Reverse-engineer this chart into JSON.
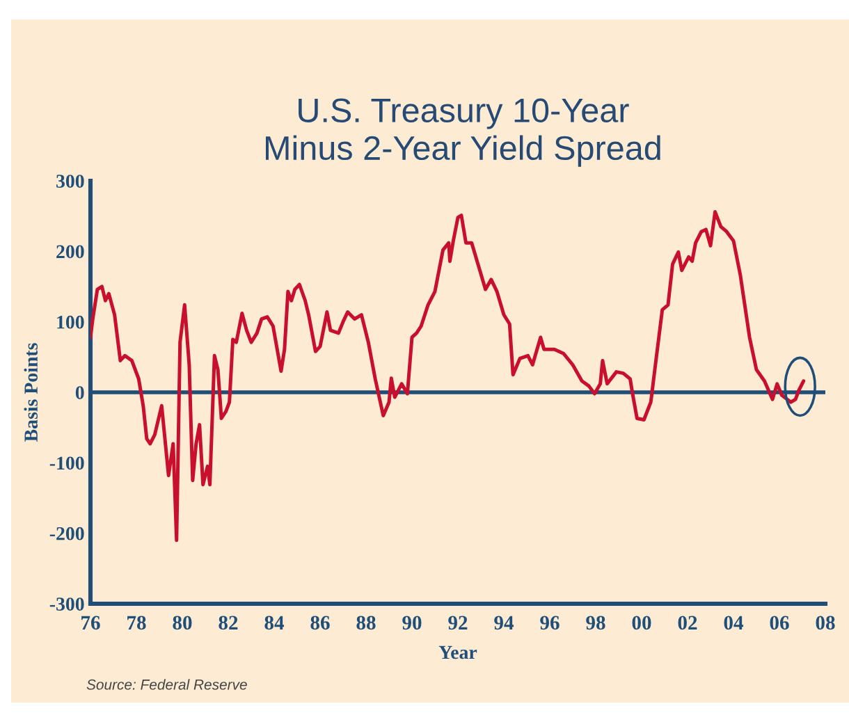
{
  "chart_data": {
    "type": "line",
    "title": "U.S. Treasury 10-Year\nMinus 2-Year Yield Spread",
    "xlabel": "Year",
    "ylabel": "Basis Points",
    "annotations": [
      "Source: Federal Reserve"
    ],
    "x": [
      1976.0,
      1976.1,
      1976.3,
      1976.5,
      1976.65,
      1976.8,
      1977.05,
      1977.3,
      1977.5,
      1977.8,
      1978.1,
      1978.3,
      1978.45,
      1978.6,
      1978.8,
      1979.1,
      1979.4,
      1979.6,
      1979.75,
      1979.9,
      1980.1,
      1980.3,
      1980.45,
      1980.6,
      1980.75,
      1980.9,
      1981.1,
      1981.2,
      1981.4,
      1981.55,
      1981.7,
      1981.9,
      1982.05,
      1982.2,
      1982.35,
      1982.6,
      1982.8,
      1983.0,
      1983.25,
      1983.45,
      1983.7,
      1983.95,
      1984.3,
      1984.45,
      1984.6,
      1984.75,
      1984.9,
      1985.1,
      1985.35,
      1985.5,
      1985.8,
      1986.0,
      1986.3,
      1986.45,
      1986.8,
      1987.0,
      1987.2,
      1987.5,
      1987.8,
      1988.1,
      1988.4,
      1988.75,
      1989.0,
      1989.1,
      1989.25,
      1989.55,
      1989.8,
      1990.0,
      1990.2,
      1990.4,
      1990.7,
      1991.0,
      1991.35,
      1991.6,
      1991.65,
      1991.8,
      1992.0,
      1992.15,
      1992.35,
      1992.6,
      1992.9,
      1993.2,
      1993.45,
      1993.7,
      1994.0,
      1994.25,
      1994.4,
      1994.7,
      1995.05,
      1995.25,
      1995.6,
      1995.75,
      1996.2,
      1996.6,
      1997.0,
      1997.4,
      1997.7,
      1997.95,
      1998.2,
      1998.3,
      1998.5,
      1998.9,
      1999.2,
      1999.5,
      1999.6,
      1999.8,
      2000.1,
      2000.4,
      2000.6,
      2000.9,
      2001.15,
      2001.35,
      2001.6,
      2001.75,
      2002.05,
      2002.2,
      2002.35,
      2002.6,
      2002.8,
      2003.0,
      2003.2,
      2003.45,
      2003.7,
      2004.0,
      2004.3,
      2004.7,
      2005.0,
      2005.35,
      2005.7,
      2005.9,
      2006.1,
      2006.5,
      2006.7,
      2006.85,
      2007.05
    ],
    "series": [
      {
        "color": "#c8102e",
        "values": [
          78,
          104,
          146,
          150,
          130,
          140,
          110,
          45,
          52,
          45,
          19,
          -20,
          -66,
          -73,
          -60,
          -19,
          -118,
          -73,
          -210,
          71,
          124,
          39,
          -125,
          -73,
          -46,
          -131,
          -105,
          -131,
          52,
          32,
          -37,
          -27,
          -14,
          75,
          71,
          112,
          88,
          71,
          84,
          104,
          107,
          94,
          30,
          61,
          143,
          130,
          146,
          153,
          130,
          110,
          58,
          65,
          114,
          88,
          84,
          100,
          114,
          104,
          110,
          71,
          19,
          -33,
          -14,
          20,
          -7,
          12,
          -2,
          78,
          84,
          94,
          124,
          143,
          202,
          212,
          186,
          215,
          248,
          251,
          212,
          212,
          179,
          146,
          160,
          143,
          110,
          97,
          25,
          48,
          52,
          39,
          78,
          61,
          61,
          55,
          39,
          16,
          9,
          -2,
          12,
          45,
          12,
          29,
          27,
          19,
          -1,
          -37,
          -39,
          -14,
          39,
          117,
          124,
          182,
          199,
          173,
          192,
          186,
          212,
          228,
          231,
          208,
          256,
          235,
          228,
          215,
          166,
          78,
          32,
          16,
          -10,
          12,
          -4,
          -14,
          -10,
          3,
          16
        ]
      }
    ],
    "xlim": [
      1976,
      2008
    ],
    "xticks": [
      {
        "value": 1976,
        "label": "76"
      },
      {
        "value": 1978,
        "label": "78"
      },
      {
        "value": 1980,
        "label": "80"
      },
      {
        "value": 1982,
        "label": "82"
      },
      {
        "value": 1984,
        "label": "84"
      },
      {
        "value": 1986,
        "label": "86"
      },
      {
        "value": 1988,
        "label": "88"
      },
      {
        "value": 1990,
        "label": "90"
      },
      {
        "value": 1992,
        "label": "92"
      },
      {
        "value": 1994,
        "label": "94"
      },
      {
        "value": 1996,
        "label": "96"
      },
      {
        "value": 1998,
        "label": "98"
      },
      {
        "value": 2000,
        "label": "00"
      },
      {
        "value": 2002,
        "label": "02"
      },
      {
        "value": 2004,
        "label": "04"
      },
      {
        "value": 2006,
        "label": "06"
      },
      {
        "value": 2008,
        "label": "08"
      }
    ],
    "ylim": [
      -300,
      300
    ],
    "yticks": [
      -300,
      -200,
      -100,
      0,
      100,
      200,
      300
    ],
    "ref_lines": [
      {
        "axis": "y",
        "value": 0,
        "color": "#1f4e79"
      }
    ],
    "grid": false,
    "legend": false
  }
}
